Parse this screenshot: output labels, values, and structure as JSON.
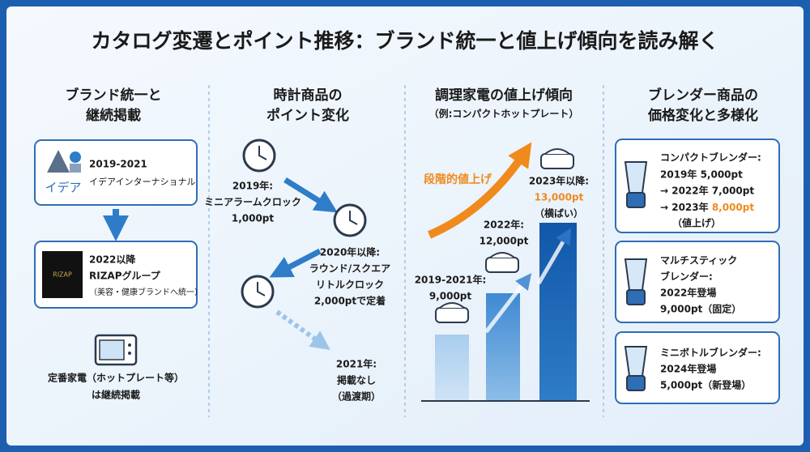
{
  "title": "カタログ変遷とポイント推移：ブランド統一と値上げ傾向を読み解く",
  "brand": {
    "heading": [
      "ブランド統一と",
      "継続掲載"
    ],
    "cards": [
      {
        "logo": "イデア",
        "lines": [
          "2019-2021",
          "イデアインターナショナル"
        ]
      },
      {
        "logo": "RIZAP",
        "lines": [
          "2022以降",
          "RIZAPグループ",
          "（美容・健康ブランドへ統一）"
        ]
      }
    ],
    "note": [
      "定番家電（ホットプレート等）",
      "は継続掲載"
    ]
  },
  "clock": {
    "heading": [
      "時計商品の",
      "ポイント変化"
    ],
    "steps": [
      [
        "2019年:",
        "ミニアラームクロック",
        "1,000pt"
      ],
      [
        "2020年以降:",
        "ラウンド/スクエア",
        "リトルクロック",
        "2,000ptで定着"
      ],
      [
        "2021年:",
        "掲載なし",
        "（過渡期）"
      ]
    ]
  },
  "cooker": {
    "heading": "調理家電の値上げ傾向",
    "subheading": "（例:コンパクトホットプレート）",
    "arrow_label": "段階的値上げ",
    "steps": [
      [
        "2019-2021年:",
        "9,000pt"
      ],
      [
        "2022年:",
        "12,000pt"
      ],
      [
        "2023年以降:",
        "13,000pt",
        "（横ばい）"
      ]
    ]
  },
  "blender": {
    "heading": [
      "ブレンダー商品の",
      "価格変化と多様化"
    ],
    "cards": [
      [
        "コンパクトブレンダー:",
        "2019年 5,000pt",
        "→ 2022年 7,000pt",
        "→ 2023年 ",
        "8,000pt",
        "（値上げ）"
      ],
      [
        "マルチスティック",
        "ブレンダー:",
        "2022年登場",
        "9,000pt（固定）"
      ],
      [
        "ミニボトルブレンダー:",
        "2024年登場",
        "5,000pt（新登場）"
      ]
    ]
  }
}
